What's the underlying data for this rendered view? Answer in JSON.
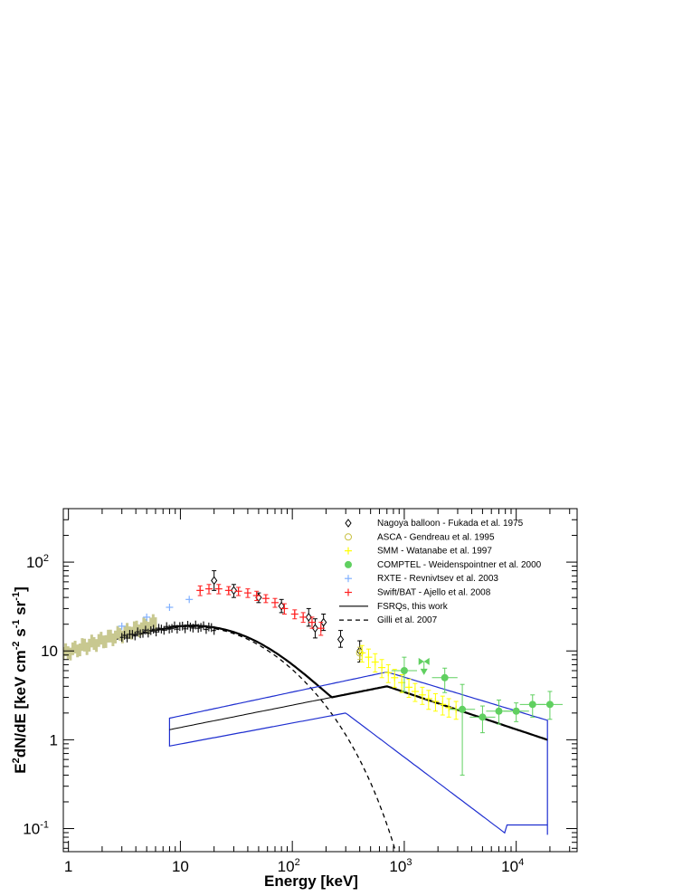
{
  "chart_data": {
    "type": "scatter",
    "xlabel": "Energy [keV]",
    "ylabel": {
      "base": "E",
      "sup1": "2",
      "mid1": "dN/dE [keV cm",
      "sup2": "-2",
      "mid2": " s",
      "sup3": "-1",
      "mid3": " sr",
      "sup4": "-1",
      "end": "]"
    },
    "xscale": "log",
    "yscale": "log",
    "xlim": [
      0.9,
      35000
    ],
    "ylim": [
      0.055,
      400
    ],
    "xticklabels": [
      {
        "v": 1,
        "base": "1",
        "sup": ""
      },
      {
        "v": 10,
        "base": "10",
        "sup": ""
      },
      {
        "v": 100,
        "base": "10",
        "sup": "2"
      },
      {
        "v": 1000,
        "base": "10",
        "sup": "3"
      },
      {
        "v": 10000,
        "base": "10",
        "sup": "4"
      }
    ],
    "yticklabels": [
      {
        "v": 0.1,
        "base": "10",
        "sup": "-1"
      },
      {
        "v": 1,
        "base": "1",
        "sup": ""
      },
      {
        "v": 10,
        "base": "10",
        "sup": ""
      },
      {
        "v": 100,
        "base": "10",
        "sup": "2"
      }
    ],
    "legend_position": "top-right",
    "series": [
      {
        "name": "Nagoya balloon - Fukada et al. 1975",
        "marker": "diamond-open",
        "color": "#000000",
        "points": [
          [
            20,
            62,
            48,
            80
          ],
          [
            30,
            48,
            40,
            56
          ],
          [
            50,
            40,
            35,
            45
          ],
          [
            80,
            32,
            27,
            38
          ],
          [
            140,
            24,
            19,
            30
          ],
          [
            160,
            18,
            14,
            23
          ],
          [
            190,
            21,
            17,
            26
          ],
          [
            270,
            13.5,
            11,
            17
          ],
          [
            400,
            10,
            7.5,
            13
          ]
        ]
      },
      {
        "name": "ASCA - Gendreau et al. 1995",
        "marker": "circle-open",
        "color": "#c8c040",
        "points": [
          [
            400,
            9.5,
            8,
            11
          ]
        ]
      },
      {
        "name": "SMM - Watanabe et al. 1997",
        "marker": "cross",
        "color": "#ffff00",
        "points": [
          [
            420,
            9.5,
            7.5,
            11.5
          ],
          [
            480,
            8.5,
            6.5,
            10.5
          ],
          [
            550,
            7.5,
            5.8,
            9.3
          ],
          [
            630,
            6.5,
            5,
            8
          ],
          [
            720,
            5.7,
            4.4,
            7
          ],
          [
            820,
            5.0,
            3.9,
            6.2
          ],
          [
            950,
            4.4,
            3.4,
            5.4
          ],
          [
            1100,
            3.9,
            3.0,
            4.8
          ],
          [
            1250,
            3.5,
            2.7,
            4.3
          ],
          [
            1450,
            3.2,
            2.5,
            3.9
          ],
          [
            1650,
            2.9,
            2.2,
            3.6
          ],
          [
            1900,
            2.7,
            2.1,
            3.3
          ],
          [
            2200,
            2.5,
            1.9,
            3.1
          ],
          [
            2500,
            2.3,
            1.8,
            2.9
          ],
          [
            2900,
            2.2,
            1.7,
            2.7
          ]
        ]
      },
      {
        "name": "COMPTEL - Weidenspointner et al. 2000",
        "marker": "circle-filled",
        "color": "#60d060",
        "points": [
          [
            1000,
            6.0,
            3.5,
            8.5
          ],
          [
            2300,
            5.0,
            3.4,
            6.4
          ],
          [
            3300,
            2.2,
            0.4,
            4.2
          ],
          [
            5000,
            1.8,
            1.2,
            2.4
          ],
          [
            7000,
            2.1,
            1.5,
            2.8
          ],
          [
            10000,
            2.1,
            1.6,
            2.6
          ],
          [
            14000,
            2.5,
            1.8,
            3.2
          ],
          [
            20000,
            2.5,
            1.7,
            3.5
          ]
        ],
        "upper_limits": [
          [
            1500,
            7.6
          ]
        ]
      },
      {
        "name": "RXTE - Revnivtsev et al. 2003",
        "marker": "plus",
        "color": "#80b0ff",
        "points": [
          [
            3,
            19
          ],
          [
            5,
            24
          ],
          [
            8,
            31
          ],
          [
            12,
            38
          ]
        ]
      },
      {
        "name": "Swift/BAT - Ajello et al. 2008",
        "marker": "plus",
        "color": "#ff2020",
        "points": [
          [
            15,
            48,
            42,
            54
          ],
          [
            18,
            50,
            44,
            56
          ],
          [
            22,
            50,
            44,
            56
          ],
          [
            27,
            48,
            43,
            53
          ],
          [
            33,
            47,
            42,
            52
          ],
          [
            40,
            45,
            40,
            50
          ],
          [
            48,
            42,
            37,
            47
          ],
          [
            58,
            39,
            35,
            43
          ],
          [
            70,
            35,
            31,
            39
          ],
          [
            85,
            30,
            26,
            34
          ],
          [
            105,
            26,
            23,
            29
          ],
          [
            125,
            24,
            21,
            27
          ],
          [
            150,
            21,
            18,
            24
          ],
          [
            180,
            18,
            15,
            21
          ]
        ]
      }
    ],
    "curves": [
      {
        "name": "FSRQs, this work",
        "style": "solid",
        "color": "#000000"
      },
      {
        "name": "Gilli et al. 2007",
        "style": "dashed",
        "color": "#000000"
      }
    ]
  }
}
